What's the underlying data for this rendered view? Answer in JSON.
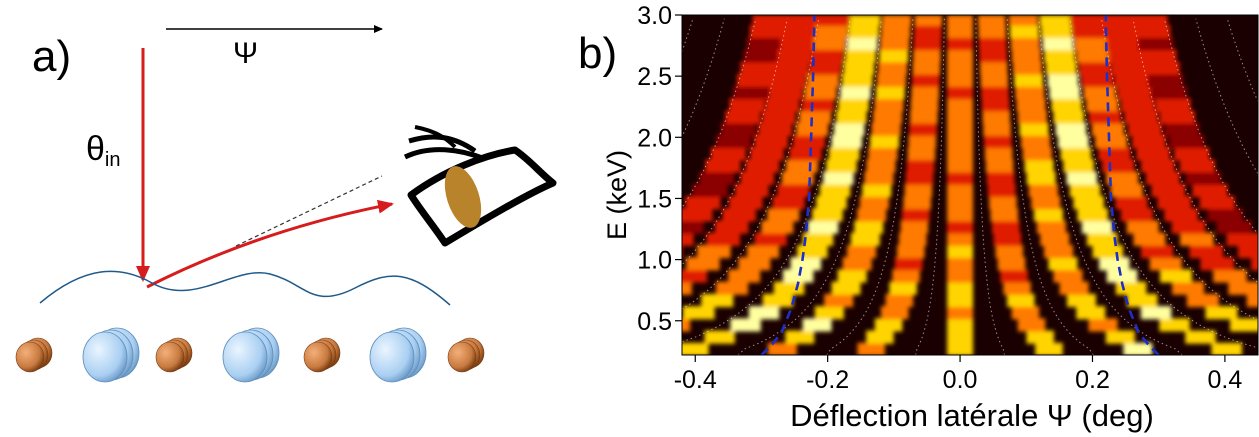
{
  "panel_a": {
    "label": "a)",
    "psi_symbol": "Ψ",
    "theta_label": "θ",
    "theta_subscript": "in",
    "colors": {
      "beam": "#d61c1c",
      "surface": "#1f5a8a",
      "atom_orange": "#c87a3f",
      "atom_blue": "#a9cff2",
      "eye_iris": "#b8832a"
    },
    "atom_row": [
      "orange",
      "blue",
      "orange",
      "blue",
      "orange",
      "blue",
      "orange"
    ]
  },
  "panel_b": {
    "label": "b)",
    "colormap": [
      "#1a0000",
      "#8b0000",
      "#e01e00",
      "#ff7a00",
      "#ffd400",
      "#ffffa0"
    ],
    "chart_data": {
      "type": "heatmap",
      "xlabel": "Déflection latérale Ψ (deg)",
      "ylabel": "E (keV)",
      "xlim": [
        -0.42,
        0.45
      ],
      "ylim": [
        0.22,
        3.0
      ],
      "x_ticks": [
        "-0.4",
        "-0.2",
        "0.0",
        "0.2",
        "0.4"
      ],
      "x_tick_values": [
        -0.4,
        -0.2,
        0.0,
        0.2,
        0.4
      ],
      "y_ticks": [
        "0.5",
        "1.0",
        "1.5",
        "2.0",
        "2.5",
        "3.0"
      ],
      "y_tick_values": [
        0.5,
        1.0,
        1.5,
        2.0,
        2.5,
        3.0
      ],
      "dashed_curve_color": "#1e2fc8",
      "dashed_curve": {
        "energy": [
          0.22,
          0.3,
          0.4,
          0.6,
          0.8,
          1.0,
          1.2,
          1.5,
          2.0,
          2.5,
          3.0
        ],
        "psi_right": [
          0.3,
          0.285,
          0.27,
          0.255,
          0.245,
          0.238,
          0.233,
          0.228,
          0.225,
          0.222,
          0.22
        ]
      }
    }
  }
}
